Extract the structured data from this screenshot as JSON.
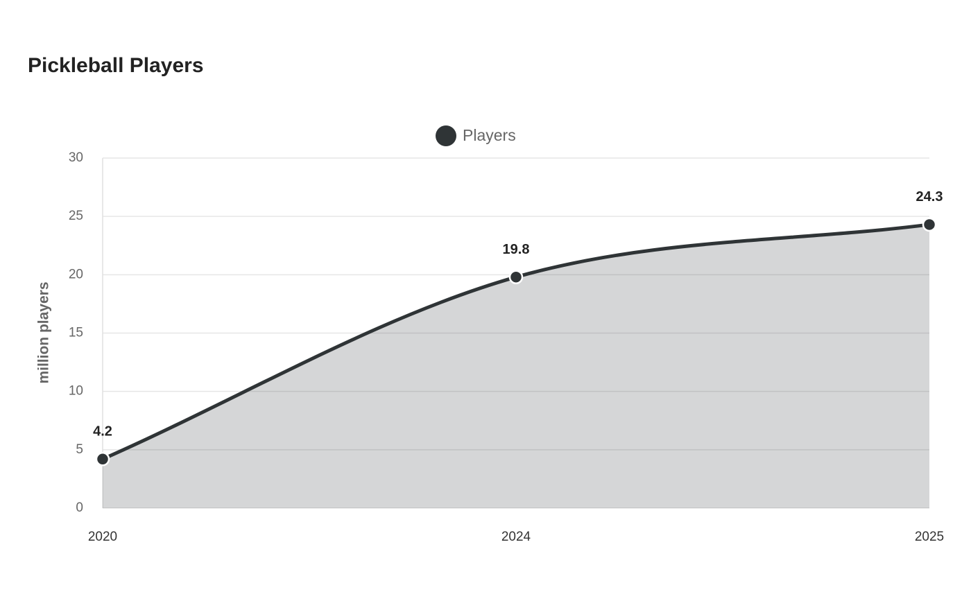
{
  "chart_data": {
    "type": "area",
    "title": "Pickleball Players",
    "y_label": "million players",
    "categories": [
      "2020",
      "2024",
      "2025"
    ],
    "series": [
      {
        "name": "Players",
        "color": "#2f3436",
        "values": [
          4.2,
          19.8,
          24.3
        ]
      }
    ],
    "ylim": [
      0,
      30
    ],
    "yticks": [
      0,
      5,
      10,
      15,
      20,
      25,
      30
    ],
    "grid": true,
    "legend": "top"
  }
}
